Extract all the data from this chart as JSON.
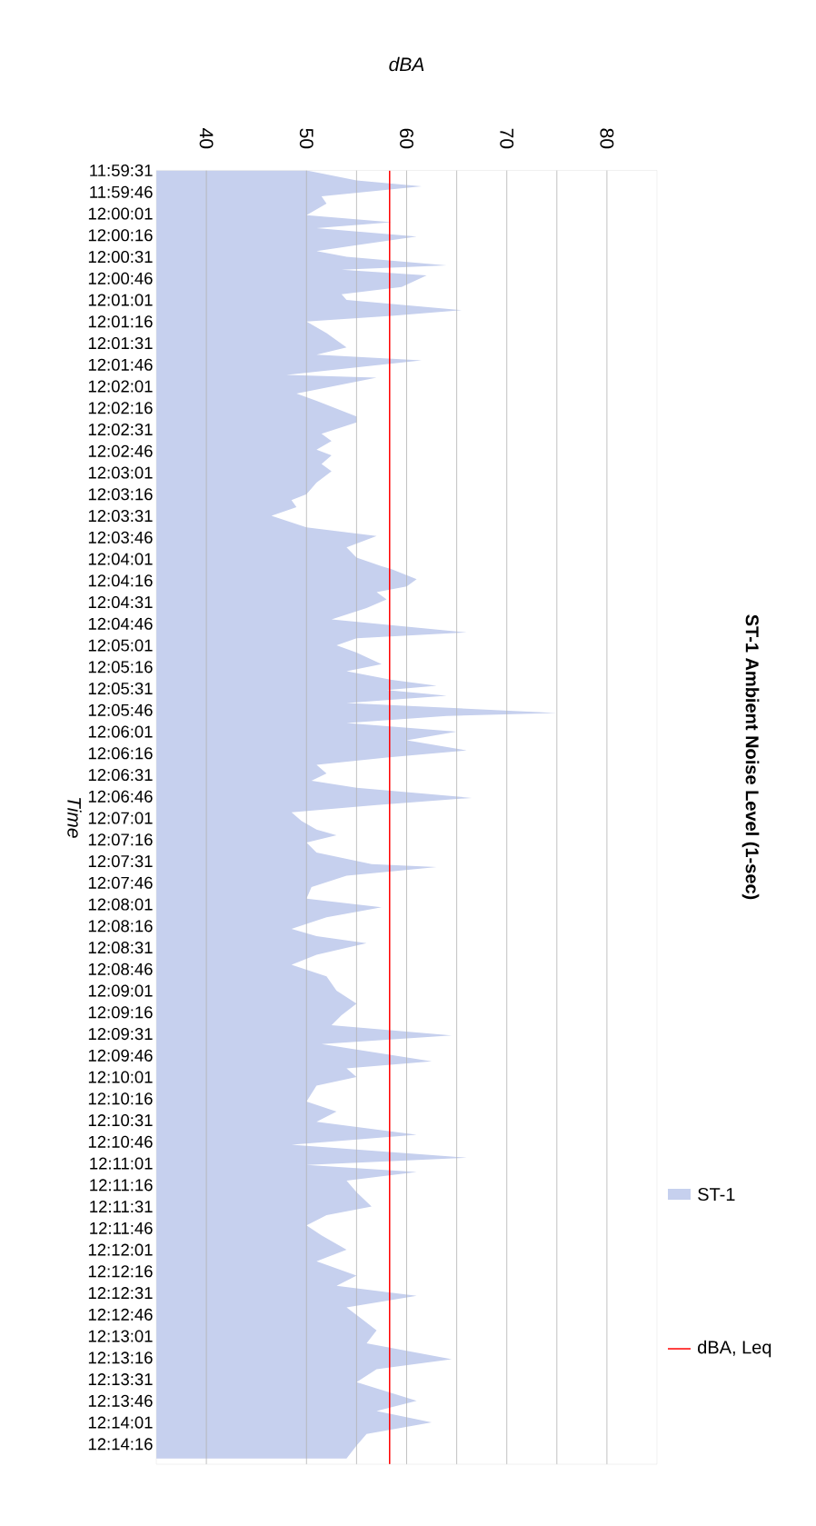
{
  "chart_data": {
    "type": "area",
    "title": "ST-1 Ambient Noise Level (1-sec)",
    "xlabel": "dBA",
    "ylabel": "Time",
    "orientation": "horizontal",
    "x": [
      11.99194,
      11.99389,
      11.995,
      11.99694,
      11.99833,
      12.00056,
      12.00194,
      12.00306,
      12.00472,
      12.00639,
      12.0075,
      12.00861,
      12.01028,
      12.01111,
      12.01222,
      12.01444,
      12.01583,
      12.01694,
      12.01889,
      12.02,
      12.02111,
      12.02333,
      12.02611,
      12.0275,
      12.02861,
      12.03139,
      12.03194,
      12.035,
      12.03639,
      12.03944,
      12.04056,
      12.04278,
      12.04417,
      12.04583,
      12.04694,
      12.04861,
      12.05,
      12.05222,
      12.05444,
      12.05556,
      12.05694,
      12.05861,
      12.06083,
      12.0625,
      12.06472,
      12.06667,
      12.06833,
      12.06889,
      12.07083,
      12.07222,
      12.07333,
      12.07472,
      12.07639,
      12.07861,
      12.08111,
      12.08222,
      12.08361,
      12.085,
      12.08722,
      12.08861,
      12.09028,
      12.09139,
      12.09222,
      12.09333,
      12.09472,
      12.09667,
      12.09722,
      12.09861,
      12.10028,
      12.10194,
      12.10389,
      12.10528,
      12.10667,
      12.10833,
      12.10972,
      12.11111,
      12.11306,
      12.11444,
      12.11583,
      12.1175,
      12.11917,
      12.12028,
      12.12167,
      12.12361,
      12.12583,
      12.12639,
      12.12806,
      12.13028,
      12.1325,
      12.13417,
      12.13611,
      12.13833,
      12.13972,
      12.14111,
      12.14333,
      12.14528,
      12.1475,
      12.15028,
      12.15278,
      12.155,
      12.15694,
      12.15889,
      12.16056,
      12.16389,
      12.16528,
      12.16694,
      12.16861,
      12.17167,
      12.17361,
      12.17556,
      12.17806,
      12.18,
      12.1825,
      12.18389,
      12.18528,
      12.18694,
      12.18917,
      12.19194,
      12.19361,
      12.19556,
      12.1975,
      12.20028,
      12.2025,
      12.20528,
      12.20722,
      12.20917,
      12.21139,
      12.21361,
      12.21583,
      12.21833,
      12.22139,
      12.22333,
      12.22583,
      12.22944,
      12.23139,
      12.23361,
      12.23583,
      12.23806,
      12.24056
    ],
    "series": [
      {
        "name": "ST-1",
        "color": "#c6d0ee",
        "values": [
          50,
          55,
          61.5,
          51.5,
          52,
          50,
          58.5,
          51,
          61,
          55,
          51,
          54,
          64,
          53.5,
          62,
          59.5,
          53.5,
          54,
          65.5,
          58.5,
          50,
          52,
          54,
          51,
          61.5,
          48,
          57,
          49,
          51,
          55,
          55,
          51.5,
          52.5,
          51,
          52.5,
          51.5,
          52.5,
          51,
          50,
          48.5,
          49,
          46.5,
          50,
          57,
          54,
          55,
          57.5,
          58.5,
          61,
          60,
          57,
          58,
          56,
          52.5,
          66,
          55,
          53,
          55,
          57.5,
          54,
          58.5,
          63,
          58,
          64,
          54,
          75,
          64,
          54,
          65,
          60,
          66,
          58,
          51,
          52,
          50.5,
          55,
          66.5,
          57,
          48.5,
          49.5,
          51,
          53,
          50,
          51,
          56.5,
          63,
          54,
          50.5,
          50,
          57.5,
          52,
          48.5,
          51,
          56,
          51,
          48.5,
          52,
          53,
          55,
          53.5,
          52.5,
          64.5,
          51.5,
          62.5,
          54,
          55,
          51,
          50,
          53,
          51,
          61,
          48.5,
          66,
          50,
          61,
          54,
          55,
          56.5,
          52,
          50,
          51.5,
          54,
          51,
          55,
          53,
          61,
          54,
          55.5,
          57,
          56,
          64.5,
          57,
          55,
          61,
          57,
          62.5,
          56,
          55,
          54
        ]
      },
      {
        "name": "dBA, Leq",
        "type": "line",
        "color": "#ff0000",
        "x": [
          11.99194,
          12.24167
        ],
        "values": [
          58.3,
          58.3
        ]
      }
    ],
    "xlim": [
      35,
      85
    ],
    "xticks": [
      40,
      50,
      {
        "value": 55,
        "label": null
      },
      60,
      {
        "value": 65,
        "label": null
      },
      70,
      {
        "value": 75,
        "label": null
      },
      80
    ],
    "ylim": [
      12.24167,
      11.99194
    ],
    "yticks": [
      {
        "value": 11.99194,
        "label": "11:59:31"
      },
      {
        "value": 11.99611,
        "label": "11:59:46"
      },
      {
        "value": 12.00028,
        "label": "12:00:01"
      },
      {
        "value": 12.00444,
        "label": "12:00:16"
      },
      {
        "value": 12.00861,
        "label": "12:00:31"
      },
      {
        "value": 12.01278,
        "label": "12:00:46"
      },
      {
        "value": 12.01694,
        "label": "12:01:01"
      },
      {
        "value": 12.02111,
        "label": "12:01:16"
      },
      {
        "value": 12.02528,
        "label": "12:01:31"
      },
      {
        "value": 12.02944,
        "label": "12:01:46"
      },
      {
        "value": 12.03361,
        "label": "12:02:01"
      },
      {
        "value": 12.03778,
        "label": "12:02:16"
      },
      {
        "value": 12.04194,
        "label": "12:02:31"
      },
      {
        "value": 12.04611,
        "label": "12:02:46"
      },
      {
        "value": 12.05028,
        "label": "12:03:01"
      },
      {
        "value": 12.05444,
        "label": "12:03:16"
      },
      {
        "value": 12.05861,
        "label": "12:03:31"
      },
      {
        "value": 12.06278,
        "label": "12:03:46"
      },
      {
        "value": 12.06694,
        "label": "12:04:01"
      },
      {
        "value": 12.07111,
        "label": "12:04:16"
      },
      {
        "value": 12.07528,
        "label": "12:04:31"
      },
      {
        "value": 12.07944,
        "label": "12:04:46"
      },
      {
        "value": 12.08361,
        "label": "12:05:01"
      },
      {
        "value": 12.08778,
        "label": "12:05:16"
      },
      {
        "value": 12.09194,
        "label": "12:05:31"
      },
      {
        "value": 12.09611,
        "label": "12:05:46"
      },
      {
        "value": 12.10028,
        "label": "12:06:01"
      },
      {
        "value": 12.10444,
        "label": "12:06:16"
      },
      {
        "value": 12.10861,
        "label": "12:06:31"
      },
      {
        "value": 12.11278,
        "label": "12:06:46"
      },
      {
        "value": 12.11694,
        "label": "12:07:01"
      },
      {
        "value": 12.12111,
        "label": "12:07:16"
      },
      {
        "value": 12.12528,
        "label": "12:07:31"
      },
      {
        "value": 12.12944,
        "label": "12:07:46"
      },
      {
        "value": 12.13361,
        "label": "12:08:01"
      },
      {
        "value": 12.13778,
        "label": "12:08:16"
      },
      {
        "value": 12.14194,
        "label": "12:08:31"
      },
      {
        "value": 12.14611,
        "label": "12:08:46"
      },
      {
        "value": 12.15028,
        "label": "12:09:01"
      },
      {
        "value": 12.15444,
        "label": "12:09:16"
      },
      {
        "value": 12.15861,
        "label": "12:09:31"
      },
      {
        "value": 12.16278,
        "label": "12:09:46"
      },
      {
        "value": 12.16694,
        "label": "12:10:01"
      },
      {
        "value": 12.17111,
        "label": "12:10:16"
      },
      {
        "value": 12.17528,
        "label": "12:10:31"
      },
      {
        "value": 12.17944,
        "label": "12:10:46"
      },
      {
        "value": 12.18361,
        "label": "12:11:01"
      },
      {
        "value": 12.18778,
        "label": "12:11:16"
      },
      {
        "value": 12.19194,
        "label": "12:11:31"
      },
      {
        "value": 12.19611,
        "label": "12:11:46"
      },
      {
        "value": 12.20028,
        "label": "12:12:01"
      },
      {
        "value": 12.20444,
        "label": "12:12:16"
      },
      {
        "value": 12.20861,
        "label": "12:12:31"
      },
      {
        "value": 12.21278,
        "label": "12:12:46"
      },
      {
        "value": 12.21694,
        "label": "12:13:01"
      },
      {
        "value": 12.22111,
        "label": "12:13:16"
      },
      {
        "value": 12.22528,
        "label": "12:13:31"
      },
      {
        "value": 12.22944,
        "label": "12:13:46"
      },
      {
        "value": 12.23361,
        "label": "12:14:01"
      },
      {
        "value": 12.23778,
        "label": "12:14:16"
      }
    ],
    "grid": "x",
    "legend": "bottom right"
  }
}
